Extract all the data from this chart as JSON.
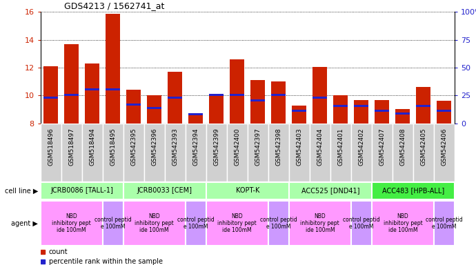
{
  "title": "GDS4213 / 1562741_at",
  "samples": [
    "GSM518496",
    "GSM518497",
    "GSM518494",
    "GSM518495",
    "GSM542395",
    "GSM542396",
    "GSM542393",
    "GSM542394",
    "GSM542399",
    "GSM542400",
    "GSM542397",
    "GSM542398",
    "GSM542403",
    "GSM542404",
    "GSM542401",
    "GSM542402",
    "GSM542407",
    "GSM542408",
    "GSM542405",
    "GSM542406"
  ],
  "count_values": [
    12.1,
    13.7,
    12.3,
    15.85,
    10.4,
    10.0,
    11.7,
    8.55,
    10.1,
    12.6,
    11.1,
    11.0,
    9.25,
    12.05,
    10.0,
    9.65,
    9.65,
    9.0,
    10.6,
    9.6
  ],
  "percentile_values": [
    9.85,
    10.05,
    10.45,
    10.45,
    9.35,
    9.1,
    9.85,
    8.65,
    10.05,
    10.05,
    9.65,
    10.05,
    8.9,
    9.85,
    9.25,
    9.25,
    8.9,
    8.7,
    9.25,
    8.9
  ],
  "cell_lines": [
    {
      "name": "JCRB0086 [TALL-1]",
      "start": 0,
      "end": 4,
      "color": "#aaffaa"
    },
    {
      "name": "JCRB0033 [CEM]",
      "start": 4,
      "end": 8,
      "color": "#aaffaa"
    },
    {
      "name": "KOPT-K",
      "start": 8,
      "end": 12,
      "color": "#aaffaa"
    },
    {
      "name": "ACC525 [DND41]",
      "start": 12,
      "end": 16,
      "color": "#aaffaa"
    },
    {
      "name": "ACC483 [HPB-ALL]",
      "start": 16,
      "end": 20,
      "color": "#44ee44"
    }
  ],
  "agents": [
    {
      "name": "NBD\ninhibitory pept\nide 100mM",
      "start": 0,
      "end": 3,
      "color": "#ff99ff"
    },
    {
      "name": "control peptid\ne 100mM",
      "start": 3,
      "end": 4,
      "color": "#cc99ff"
    },
    {
      "name": "NBD\ninhibitory pept\nide 100mM",
      "start": 4,
      "end": 7,
      "color": "#ff99ff"
    },
    {
      "name": "control peptid\ne 100mM",
      "start": 7,
      "end": 8,
      "color": "#cc99ff"
    },
    {
      "name": "NBD\ninhibitory pept\nide 100mM",
      "start": 8,
      "end": 11,
      "color": "#ff99ff"
    },
    {
      "name": "control peptid\ne 100mM",
      "start": 11,
      "end": 12,
      "color": "#cc99ff"
    },
    {
      "name": "NBD\ninhibitory pept\nide 100mM",
      "start": 12,
      "end": 15,
      "color": "#ff99ff"
    },
    {
      "name": "control peptid\ne 100mM",
      "start": 15,
      "end": 16,
      "color": "#cc99ff"
    },
    {
      "name": "NBD\ninhibitory pept\nide 100mM",
      "start": 16,
      "end": 19,
      "color": "#ff99ff"
    },
    {
      "name": "control peptid\ne 100mM",
      "start": 19,
      "end": 20,
      "color": "#cc99ff"
    }
  ],
  "bar_color": "#cc2200",
  "percentile_color": "#2222cc",
  "ylim": [
    8,
    16
  ],
  "yticks_left": [
    8,
    10,
    12,
    14,
    16
  ],
  "yticks_right": [
    0,
    25,
    50,
    75,
    100
  ],
  "background_color": "#ffffff",
  "tick_label_color_left": "#cc2200",
  "tick_label_color_right": "#2222cc",
  "label_bg_color": "#d0d0d0",
  "cell_line_label": "cell line",
  "agent_label": "agent"
}
